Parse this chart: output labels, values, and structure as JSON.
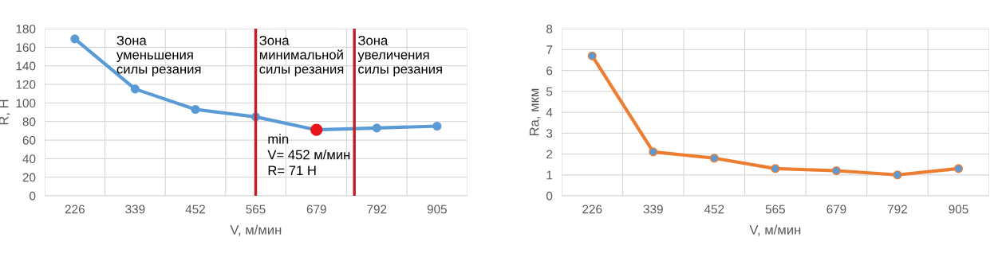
{
  "chart_data": [
    {
      "type": "line",
      "xlabel": "V, м/мин",
      "ylabel": "R, Н",
      "x": [
        226,
        339,
        452,
        565,
        679,
        792,
        905
      ],
      "xlim": [
        169.5,
        961.5
      ],
      "xticks": [
        {
          "value": 169.5,
          "label": null
        },
        226,
        {
          "value": 282.5,
          "label": null
        },
        339,
        {
          "value": 395.5,
          "label": null
        },
        452,
        {
          "value": 508.5,
          "label": null
        },
        565,
        {
          "value": 621.5,
          "label": null
        },
        679,
        {
          "value": 735.5,
          "label": null
        },
        792,
        {
          "value": 848.5,
          "label": null
        },
        905,
        {
          "value": 961.5,
          "label": null
        }
      ],
      "ylim": [
        0,
        180
      ],
      "yticks": [
        0,
        20,
        40,
        60,
        80,
        100,
        120,
        140,
        160,
        180
      ],
      "series": [
        {
          "color": "#5b9bd5",
          "colors": [
            "#5b9bd5",
            "#5b9bd5",
            "#5b9bd5",
            "#5b9bd5",
            "#e8141b",
            "#5b9bd5",
            "#5b9bd5"
          ],
          "values": [
            169,
            115,
            93,
            85,
            71,
            73,
            75
          ]
        }
      ],
      "ref_lines": [
        {
          "axis": "x",
          "value": 565,
          "color": "#c0202a"
        },
        {
          "axis": "x",
          "value": 750,
          "color": "#c0202a"
        }
      ],
      "annotations": [
        "Зона\nуменьшения\nсилы резания",
        "Зона\nминимальной\nсилы резания",
        "Зона\nувеличения\nсилы резания",
        "min\nV= 452 м/мин\nR= 71 Н"
      ],
      "grid": true,
      "marker": "circle",
      "line_style": "solid"
    },
    {
      "type": "line",
      "xlabel": "V, м/мин",
      "ylabel": "Ra, мкм",
      "categories": [
        "226",
        "339",
        "452",
        "565",
        "679",
        "792",
        "905"
      ],
      "ylim": [
        0,
        8
      ],
      "yticks": [
        0,
        1,
        2,
        3,
        4,
        5,
        6,
        7,
        8
      ],
      "series": [
        {
          "color": "#ed7d31",
          "colors": [
            "#5b9bd5",
            "#5b9bd5",
            "#5b9bd5",
            "#5b9bd5",
            "#5b9bd5",
            "#5b9bd5",
            "#5b9bd5"
          ],
          "values": [
            6.7,
            2.1,
            1.8,
            1.3,
            1.2,
            1.0,
            1.3
          ]
        }
      ],
      "grid": true,
      "marker": "circle",
      "line_style": "solid"
    }
  ]
}
